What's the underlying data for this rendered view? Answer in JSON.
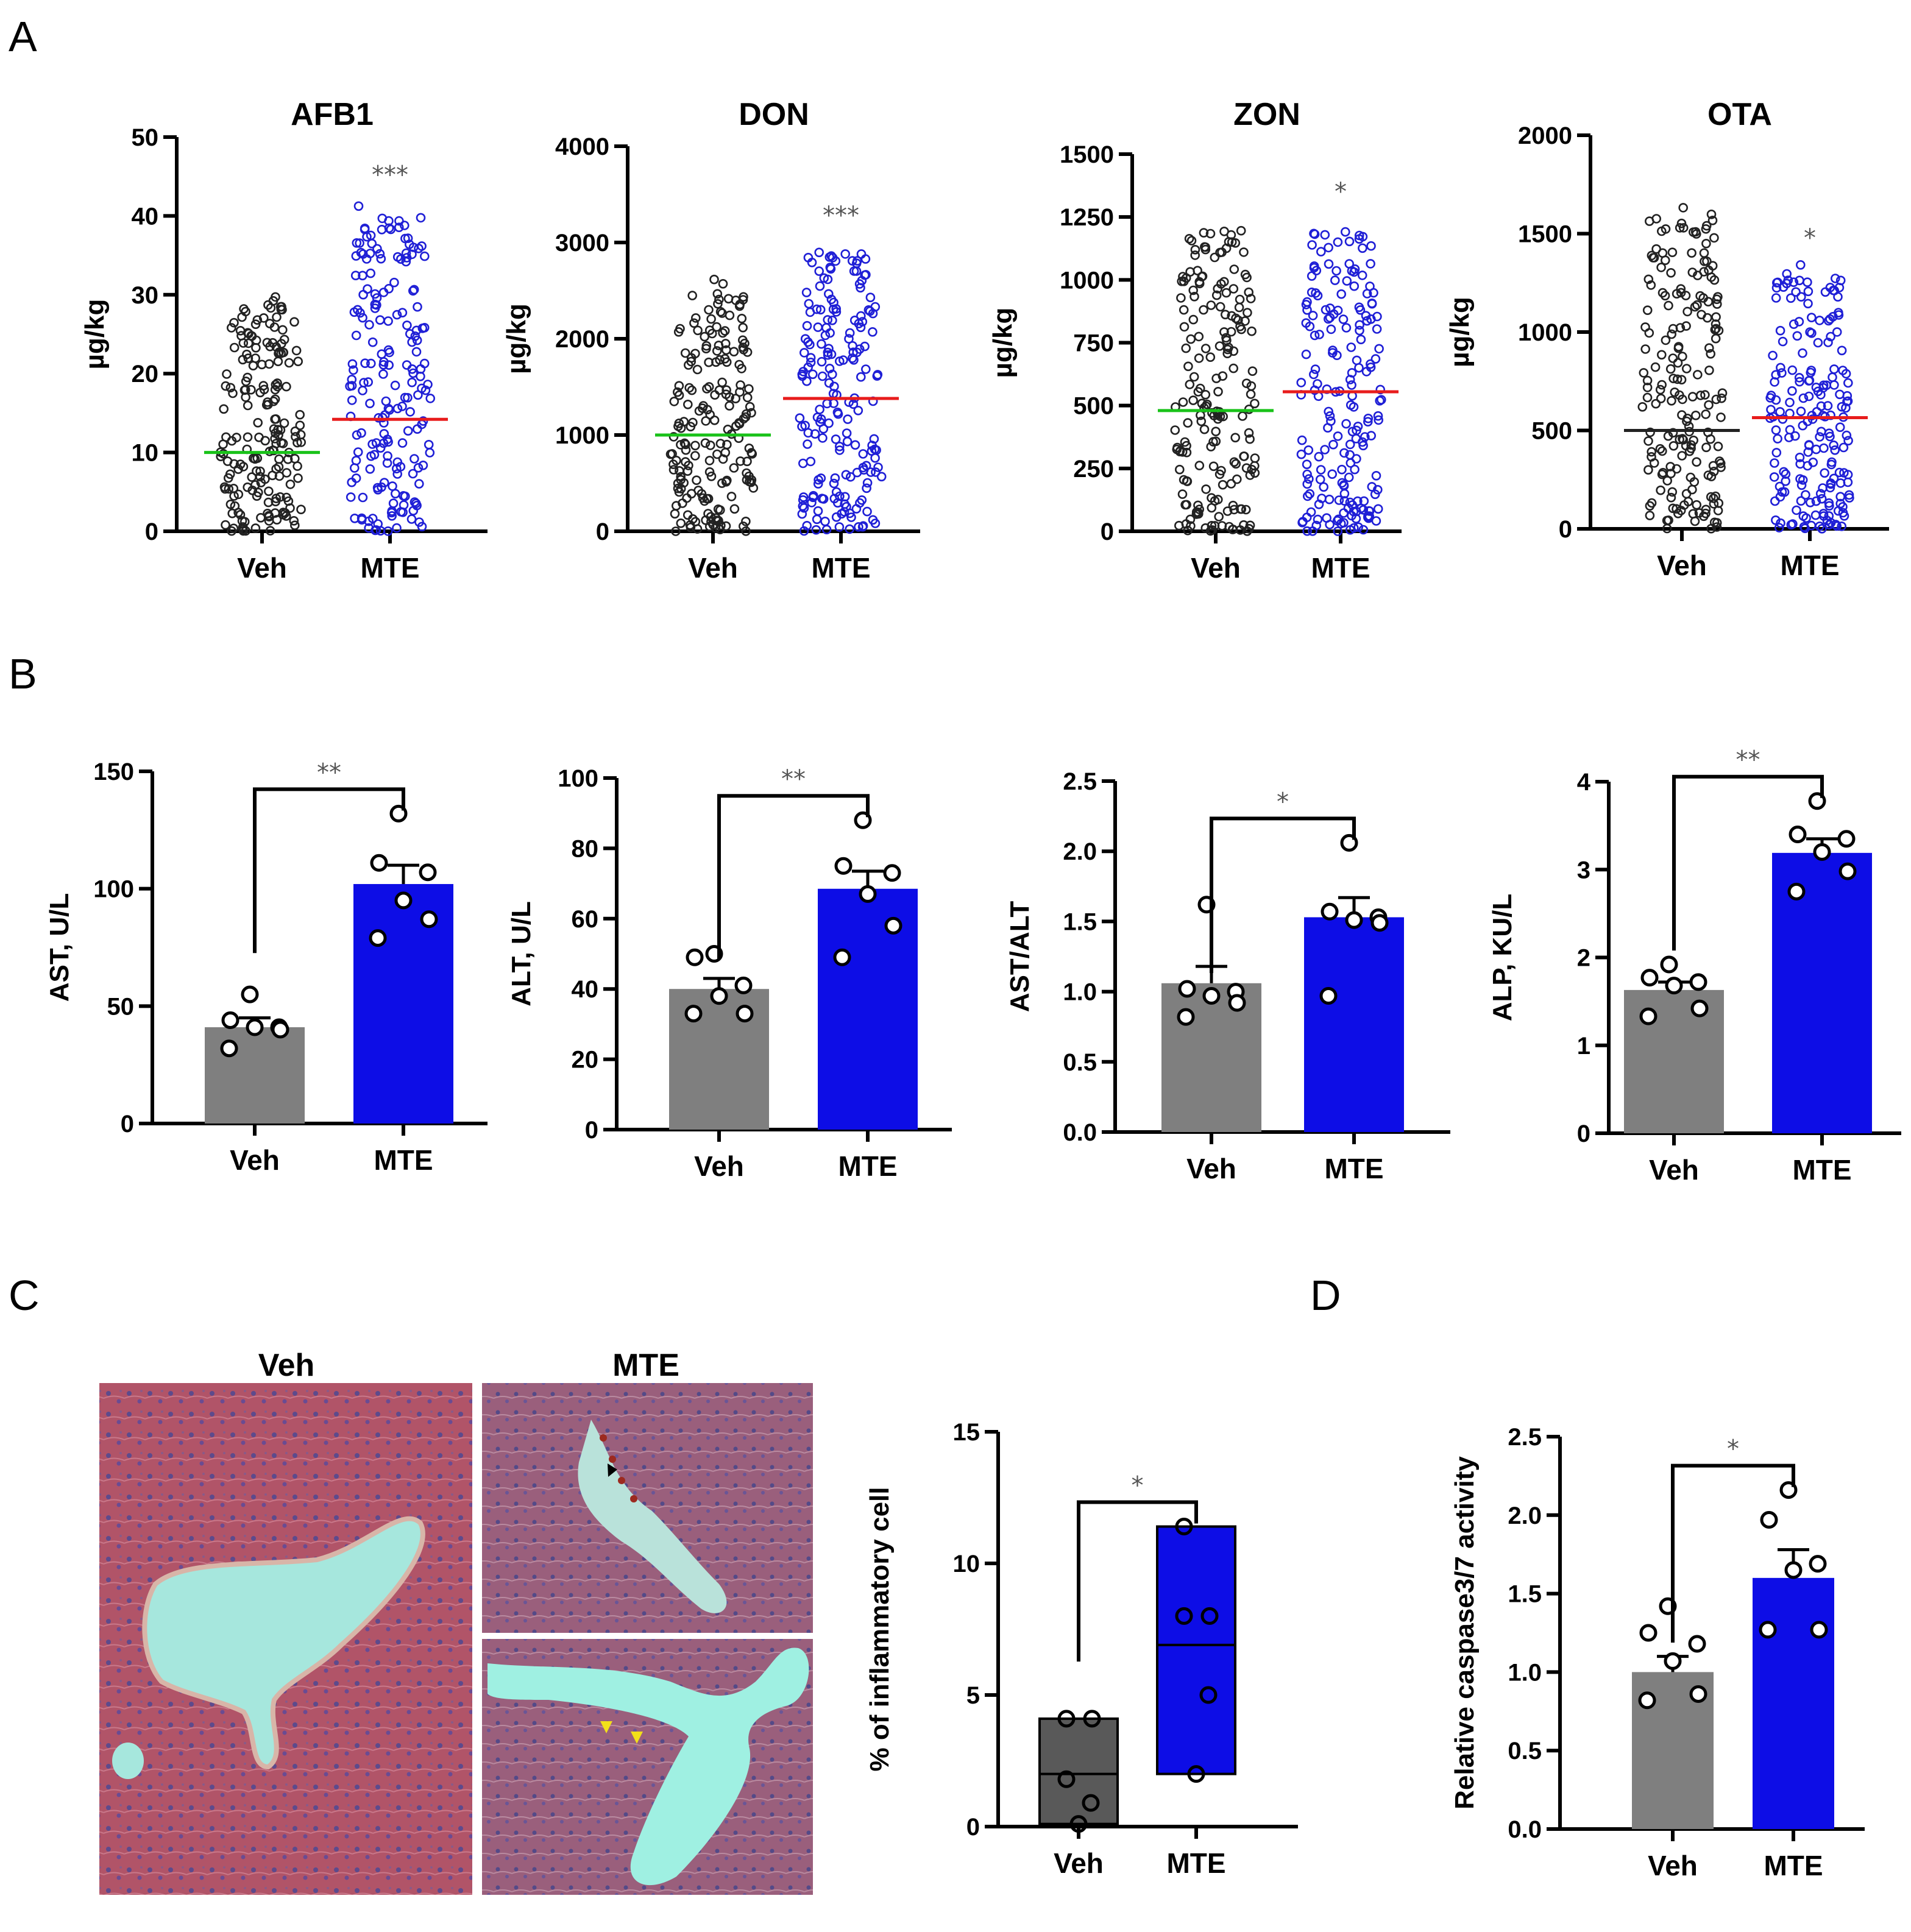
{
  "panel_labels": {
    "a": "A",
    "b": "B",
    "c": "C",
    "d": "D"
  },
  "chart_data": [
    {
      "id": "afb1",
      "type": "scatter",
      "title": "AFB1",
      "ylabel": "µg/kg",
      "ylim": [
        0,
        50
      ],
      "yticks": [
        0,
        10,
        20,
        30,
        40,
        50
      ],
      "categories": [
        "Veh",
        "MTE"
      ],
      "means": [
        10.0,
        14.2
      ],
      "max": [
        30.0,
        42.0
      ],
      "significance": "***",
      "point_colors": [
        "#222222",
        "#1f1fd6"
      ],
      "mean_colors": [
        "#19c219",
        "#e81c1c"
      ]
    },
    {
      "id": "don",
      "type": "scatter",
      "title": "DON",
      "ylabel": "µg/kg",
      "ylim": [
        0,
        4000
      ],
      "yticks": [
        0,
        1000,
        2000,
        3000,
        4000
      ],
      "categories": [
        "Veh",
        "MTE"
      ],
      "means": [
        1000,
        1380
      ],
      "max": [
        2640,
        3020
      ],
      "significance": "***",
      "point_colors": [
        "#222222",
        "#1f1fd6"
      ],
      "mean_colors": [
        "#19c219",
        "#e81c1c"
      ]
    },
    {
      "id": "zon",
      "type": "scatter",
      "title": "ZON",
      "ylabel": "µg/kg",
      "ylim": [
        0,
        1500
      ],
      "yticks": [
        0,
        250,
        500,
        750,
        1000,
        1250,
        1500
      ],
      "categories": [
        "Veh",
        "MTE"
      ],
      "means": [
        480,
        555
      ],
      "max": [
        1250,
        1250
      ],
      "significance": "*",
      "point_colors": [
        "#222222",
        "#1f1fd6"
      ],
      "mean_colors": [
        "#19c219",
        "#e81c1c"
      ]
    },
    {
      "id": "ota",
      "type": "scatter",
      "title": "OTA",
      "ylabel": "µg/kg",
      "ylim": [
        0,
        2000
      ],
      "yticks": [
        0,
        500,
        1000,
        1500,
        2000
      ],
      "categories": [
        "Veh",
        "MTE"
      ],
      "means": [
        500,
        565
      ],
      "max": [
        1650,
        1350
      ],
      "significance": "*",
      "point_colors": [
        "#222222",
        "#1f1fd6"
      ],
      "mean_colors": [
        "#222222",
        "#e81c1c"
      ]
    },
    {
      "id": "ast",
      "type": "bar",
      "title": "",
      "ylabel": "AST, U/L",
      "ylim": [
        0,
        150
      ],
      "yticks": [
        0,
        50,
        100,
        150
      ],
      "categories": [
        "Veh",
        "MTE"
      ],
      "values": [
        41,
        102
      ],
      "sem": [
        4,
        8
      ],
      "significance": "**",
      "points": [
        [
          55,
          44,
          41,
          41,
          40,
          32
        ],
        [
          132,
          111,
          107,
          95,
          87,
          79
        ]
      ],
      "bar_colors": [
        "#7f7f7f",
        "#0d0de6"
      ]
    },
    {
      "id": "alt",
      "type": "bar",
      "title": "",
      "ylabel": "ALT, U/L",
      "ylim": [
        0,
        100
      ],
      "yticks": [
        0,
        20,
        40,
        60,
        80,
        100
      ],
      "categories": [
        "Veh",
        "MTE"
      ],
      "values": [
        40,
        68.5
      ],
      "sem": [
        3,
        5
      ],
      "significance": "**",
      "points": [
        [
          50,
          49,
          41,
          38,
          33,
          33
        ],
        [
          88,
          75,
          73,
          67,
          58,
          49
        ]
      ],
      "bar_colors": [
        "#7f7f7f",
        "#0d0de6"
      ]
    },
    {
      "id": "astalt",
      "type": "bar",
      "title": "",
      "ylabel": "AST/ALT",
      "ylim": [
        0,
        2.5
      ],
      "yticks": [
        "0.0",
        "0.5",
        "1.0",
        "1.5",
        "2.0",
        "2.5"
      ],
      "categories": [
        "Veh",
        "MTE"
      ],
      "values": [
        1.06,
        1.53
      ],
      "sem": [
        0.12,
        0.14
      ],
      "significance": "*",
      "points": [
        [
          1.62,
          1.02,
          1.0,
          0.97,
          0.92,
          0.82
        ],
        [
          2.06,
          1.57,
          1.53,
          1.51,
          1.49,
          0.97
        ]
      ],
      "bar_colors": [
        "#7f7f7f",
        "#0d0de6"
      ]
    },
    {
      "id": "alp",
      "type": "bar",
      "title": "",
      "ylabel": "ALP, KU/L",
      "ylim": [
        0,
        4
      ],
      "yticks": [
        0,
        1,
        2,
        3,
        4
      ],
      "categories": [
        "Veh",
        "MTE"
      ],
      "values": [
        1.63,
        3.19
      ],
      "sem": [
        0.09,
        0.16
      ],
      "significance": "**",
      "points": [
        [
          1.92,
          1.77,
          1.72,
          1.68,
          1.42,
          1.33
        ],
        [
          3.78,
          3.4,
          3.35,
          3.2,
          2.98,
          2.75
        ]
      ],
      "bar_colors": [
        "#7f7f7f",
        "#0d0de6"
      ]
    },
    {
      "id": "inflam",
      "type": "floating-bar",
      "title": "",
      "ylabel": "% of inflammatory cell",
      "ylim": [
        0,
        15
      ],
      "yticks": [
        0,
        5,
        10,
        15
      ],
      "categories": [
        "Veh",
        "MTE"
      ],
      "low": [
        0.1,
        2.0
      ],
      "high": [
        4.1,
        11.4
      ],
      "mean": [
        2.0,
        6.9
      ],
      "significance": "*",
      "points": [
        [
          4.1,
          4.1,
          1.8,
          0.9,
          0.1
        ],
        [
          11.4,
          8.0,
          8.0,
          5.0,
          2.0
        ]
      ],
      "bar_colors": [
        "#595959",
        "#0d0de6"
      ]
    },
    {
      "id": "caspase",
      "type": "bar",
      "title": "",
      "ylabel": "Relative caspase3/7 activity",
      "ylim": [
        0,
        2.5
      ],
      "yticks": [
        "0.0",
        "0.5",
        "1.0",
        "1.5",
        "2.0",
        "2.5"
      ],
      "categories": [
        "Veh",
        "MTE"
      ],
      "values": [
        1.0,
        1.6
      ],
      "sem": [
        0.1,
        0.18
      ],
      "significance": "*",
      "points": [
        [
          1.42,
          1.25,
          1.18,
          1.07,
          0.86,
          0.82
        ],
        [
          2.16,
          1.97,
          1.69,
          1.65,
          1.27,
          1.27
        ]
      ],
      "bar_colors": [
        "#7f7f7f",
        "#0d0de6"
      ]
    }
  ],
  "histology": {
    "left_title": "Veh",
    "right_title": "MTE"
  }
}
